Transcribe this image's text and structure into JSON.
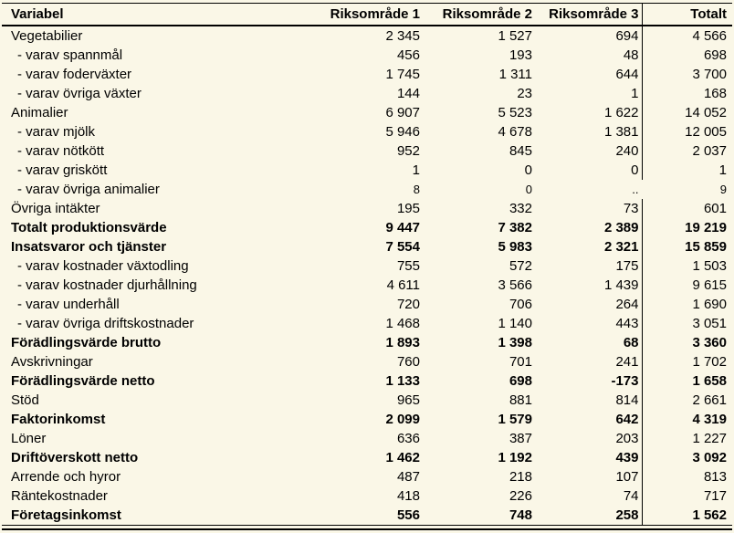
{
  "chart_data": {
    "type": "table",
    "columns": [
      "Variabel",
      "Riksområde 1",
      "Riksområde 2",
      "Riksområde 3",
      "Totalt"
    ],
    "rows": [
      {
        "label": "Vegetabilier",
        "style": "normal",
        "values": [
          "2 345",
          "1 527",
          "694",
          "4 566"
        ]
      },
      {
        "label": "- varav spannmål",
        "style": "sub",
        "values": [
          "456",
          "193",
          "48",
          "698"
        ]
      },
      {
        "label": "- varav foderväxter",
        "style": "sub",
        "values": [
          "1 745",
          "1 311",
          "644",
          "3 700"
        ]
      },
      {
        "label": "- varav övriga växter",
        "style": "sub",
        "values": [
          "144",
          "23",
          "1",
          "168"
        ]
      },
      {
        "label": "Animalier",
        "style": "normal",
        "values": [
          "6 907",
          "5 523",
          "1 622",
          "14 052"
        ]
      },
      {
        "label": "- varav mjölk",
        "style": "sub",
        "values": [
          "5 946",
          "4 678",
          "1 381",
          "12 005"
        ]
      },
      {
        "label": "- varav nötkött",
        "style": "sub",
        "values": [
          "952",
          "845",
          "240",
          "2 037"
        ]
      },
      {
        "label": "- varav griskött",
        "style": "sub",
        "values": [
          "1",
          "0",
          "0",
          "1"
        ]
      },
      {
        "label": "- varav övriga animalier",
        "style": "sub",
        "values": [
          "8",
          "0",
          "..",
          "9"
        ],
        "small_numbers": true,
        "no_divider": true
      },
      {
        "label": "Övriga intäkter",
        "style": "normal",
        "values": [
          "195",
          "332",
          "73",
          "601"
        ]
      },
      {
        "label": "Totalt produktionsvärde",
        "style": "bold",
        "values": [
          "9 447",
          "7 382",
          "2 389",
          "19 219"
        ]
      },
      {
        "label": "Insatsvaror och tjänster",
        "style": "bold",
        "values": [
          "7 554",
          "5 983",
          "2 321",
          "15 859"
        ]
      },
      {
        "label": "- varav kostnader växtodling",
        "style": "sub",
        "values": [
          "755",
          "572",
          "175",
          "1 503"
        ]
      },
      {
        "label": "- varav kostnader djurhållning",
        "style": "sub",
        "values": [
          "4 611",
          "3 566",
          "1 439",
          "9 615"
        ]
      },
      {
        "label": "- varav underhåll",
        "style": "sub",
        "values": [
          "720",
          "706",
          "264",
          "1 690"
        ]
      },
      {
        "label": "- varav övriga driftskostnader",
        "style": "sub",
        "values": [
          "1 468",
          "1 140",
          "443",
          "3 051"
        ]
      },
      {
        "label": "Förädlingsvärde brutto",
        "style": "bold",
        "values": [
          "1 893",
          "1 398",
          "68",
          "3 360"
        ]
      },
      {
        "label": "Avskrivningar",
        "style": "normal",
        "values": [
          "760",
          "701",
          "241",
          "1 702"
        ]
      },
      {
        "label": "Förädlingsvärde netto",
        "style": "bold",
        "values": [
          "1 133",
          "698",
          "-173",
          "1 658"
        ]
      },
      {
        "label": "Stöd",
        "style": "normal",
        "values": [
          "965",
          "881",
          "814",
          "2 661"
        ]
      },
      {
        "label": "Faktorinkomst",
        "style": "bold",
        "values": [
          "2 099",
          "1 579",
          "642",
          "4 319"
        ]
      },
      {
        "label": "Löner",
        "style": "normal",
        "values": [
          "636",
          "387",
          "203",
          "1 227"
        ]
      },
      {
        "label": "Driftöverskott netto",
        "style": "bold",
        "values": [
          "1 462",
          "1 192",
          "439",
          "3 092"
        ]
      },
      {
        "label": "Arrende och hyror",
        "style": "normal",
        "values": [
          "487",
          "218",
          "107",
          "813"
        ]
      },
      {
        "label": "Räntekostnader",
        "style": "normal",
        "values": [
          "418",
          "226",
          "74",
          "717"
        ]
      },
      {
        "label": "Företagsinkomst",
        "style": "bold",
        "values": [
          "556",
          "748",
          "258",
          "1 562"
        ]
      }
    ]
  },
  "colors": {
    "background": "#FAF7E7",
    "text": "#000000",
    "rules": "#000000"
  }
}
